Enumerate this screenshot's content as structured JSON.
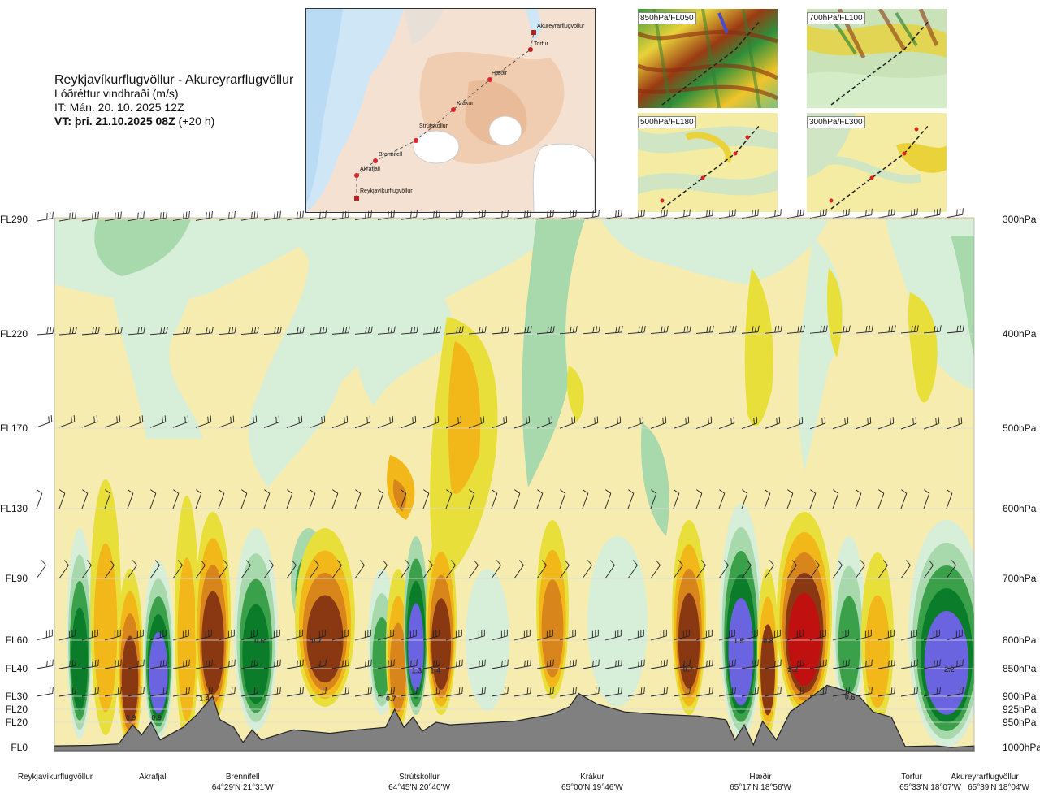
{
  "header": {
    "route_title": "Reykjavíkurflugvöllur - Akureyrarflugvöllur",
    "subtitle": "Lóðréttur vindhraði (m/s)",
    "issue_time": "IT: Mán. 20. 10. 2025 12Z",
    "valid_time": "VT: þri. 21.10.2025 08Z",
    "lead": "(+20 h)"
  },
  "route_map": {
    "waypoints": [
      "Reykjavíkurflugvöllur",
      "Akrafjall",
      "Brennifell",
      "Strútskollur",
      "Krákur",
      "Hæðir",
      "Torfur",
      "Akureyrarflugvöllur"
    ]
  },
  "level_maps": [
    {
      "label": "850hPa/FL050"
    },
    {
      "label": "700hPa/FL100"
    },
    {
      "label": "500hPa/FL180"
    },
    {
      "label": "300hPa/FL300"
    }
  ],
  "chart_data": {
    "type": "heatmap",
    "title": "Lóðréttur vindhraði (m/s)",
    "y_levels_fl": [
      "FL290",
      "FL220",
      "FL170",
      "FL130",
      "FL90",
      "FL60",
      "FL40",
      "FL30",
      "FL20",
      "FL20",
      "FL0"
    ],
    "y_levels_hpa": [
      "300hPa",
      "400hPa",
      "500hPa",
      "600hPa",
      "700hPa",
      "800hPa",
      "850hPa",
      "900hPa",
      "925hPa",
      "950hPa",
      "1000hPa"
    ],
    "y_hpa_values": [
      300,
      400,
      500,
      600,
      700,
      800,
      850,
      900,
      925,
      950,
      1000
    ],
    "x_locations": [
      {
        "name": "Reykjavíkurflugvöllur",
        "coord": "",
        "frac": 0.0
      },
      {
        "name": "Akrafjall",
        "coord": "",
        "frac": 0.09
      },
      {
        "name": "Brennifell",
        "coord": "64°29'N 21°31'W",
        "frac": 0.187
      },
      {
        "name": "Strútskollur",
        "coord": "64°45'N 20°40'W",
        "frac": 0.379
      },
      {
        "name": "Krákur",
        "coord": "65°00'N 19°46'W",
        "frac": 0.567
      },
      {
        "name": "Hæðir",
        "coord": "65°17'N 18°56'W",
        "frac": 0.75
      },
      {
        "name": "Torfur",
        "coord": "65°33'N 18°07'W",
        "frac": 0.95
      },
      {
        "name": "Akureyrarflugvöllur",
        "coord": "65°39'N 18°04'W",
        "frac": 1.0
      }
    ],
    "value_labels": [
      {
        "text": "0.9",
        "frac": 0.083,
        "hpa": 940
      },
      {
        "text": "0.9",
        "frac": 0.111,
        "hpa": 940
      },
      {
        "text": "1.4",
        "frac": 0.163,
        "hpa": 902
      },
      {
        "text": "0.6",
        "frac": 0.223,
        "hpa": 800
      },
      {
        "text": "0.7",
        "frac": 0.285,
        "hpa": 800
      },
      {
        "text": "0.7",
        "frac": 0.366,
        "hpa": 903
      },
      {
        "text": "1.3",
        "frac": 0.394,
        "hpa": 852
      },
      {
        "text": "1.4",
        "frac": 0.414,
        "hpa": 852
      },
      {
        "text": "0.7",
        "frac": 0.689,
        "hpa": 850
      },
      {
        "text": "1.5",
        "frac": 0.744,
        "hpa": 800
      },
      {
        "text": "0.8",
        "frac": 0.776,
        "hpa": 800
      },
      {
        "text": "2.2",
        "frac": 0.803,
        "hpa": 850
      },
      {
        "text": "0.6",
        "frac": 0.865,
        "hpa": 900
      },
      {
        "text": "2.2",
        "frac": 0.973,
        "hpa": 850
      }
    ],
    "palette": {
      "strong_down_dark": "#6b64e0",
      "down_3": "#0b7d2a",
      "down_2": "#3aa14a",
      "down_1": "#a8d9ad",
      "down_weak": "#d7eed9",
      "neutral": "#ffffff",
      "up_weak": "#f6ecb0",
      "up_1": "#e9df3a",
      "up_2": "#f2b81a",
      "up_3": "#d8851b",
      "up_4": "#8a3812",
      "up_5": "#c01010",
      "terrain": "#808080"
    },
    "terrain_hpa": [
      {
        "frac": 0.0,
        "hpa": 997
      },
      {
        "frac": 0.04,
        "hpa": 996
      },
      {
        "frac": 0.07,
        "hpa": 993
      },
      {
        "frac": 0.085,
        "hpa": 955
      },
      {
        "frac": 0.095,
        "hpa": 975
      },
      {
        "frac": 0.105,
        "hpa": 950
      },
      {
        "frac": 0.115,
        "hpa": 985
      },
      {
        "frac": 0.14,
        "hpa": 960
      },
      {
        "frac": 0.155,
        "hpa": 935
      },
      {
        "frac": 0.172,
        "hpa": 900
      },
      {
        "frac": 0.18,
        "hpa": 945
      },
      {
        "frac": 0.195,
        "hpa": 960
      },
      {
        "frac": 0.205,
        "hpa": 990
      },
      {
        "frac": 0.215,
        "hpa": 965
      },
      {
        "frac": 0.225,
        "hpa": 985
      },
      {
        "frac": 0.26,
        "hpa": 965
      },
      {
        "frac": 0.3,
        "hpa": 972
      },
      {
        "frac": 0.33,
        "hpa": 965
      },
      {
        "frac": 0.36,
        "hpa": 960
      },
      {
        "frac": 0.37,
        "hpa": 925
      },
      {
        "frac": 0.38,
        "hpa": 960
      },
      {
        "frac": 0.39,
        "hpa": 940
      },
      {
        "frac": 0.4,
        "hpa": 968
      },
      {
        "frac": 0.415,
        "hpa": 950
      },
      {
        "frac": 0.43,
        "hpa": 955
      },
      {
        "frac": 0.45,
        "hpa": 953
      },
      {
        "frac": 0.5,
        "hpa": 948
      },
      {
        "frac": 0.54,
        "hpa": 935
      },
      {
        "frac": 0.56,
        "hpa": 920
      },
      {
        "frac": 0.57,
        "hpa": 895
      },
      {
        "frac": 0.59,
        "hpa": 915
      },
      {
        "frac": 0.62,
        "hpa": 930
      },
      {
        "frac": 0.66,
        "hpa": 935
      },
      {
        "frac": 0.7,
        "hpa": 938
      },
      {
        "frac": 0.73,
        "hpa": 945
      },
      {
        "frac": 0.74,
        "hpa": 985
      },
      {
        "frac": 0.75,
        "hpa": 955
      },
      {
        "frac": 0.76,
        "hpa": 995
      },
      {
        "frac": 0.77,
        "hpa": 948
      },
      {
        "frac": 0.785,
        "hpa": 985
      },
      {
        "frac": 0.8,
        "hpa": 930
      },
      {
        "frac": 0.82,
        "hpa": 905
      },
      {
        "frac": 0.84,
        "hpa": 880
      },
      {
        "frac": 0.86,
        "hpa": 890
      },
      {
        "frac": 0.875,
        "hpa": 900
      },
      {
        "frac": 0.89,
        "hpa": 930
      },
      {
        "frac": 0.91,
        "hpa": 940
      },
      {
        "frac": 0.925,
        "hpa": 998
      },
      {
        "frac": 0.96,
        "hpa": 997
      },
      {
        "frac": 0.975,
        "hpa": 1000
      },
      {
        "frac": 1.0,
        "hpa": 997
      }
    ]
  }
}
